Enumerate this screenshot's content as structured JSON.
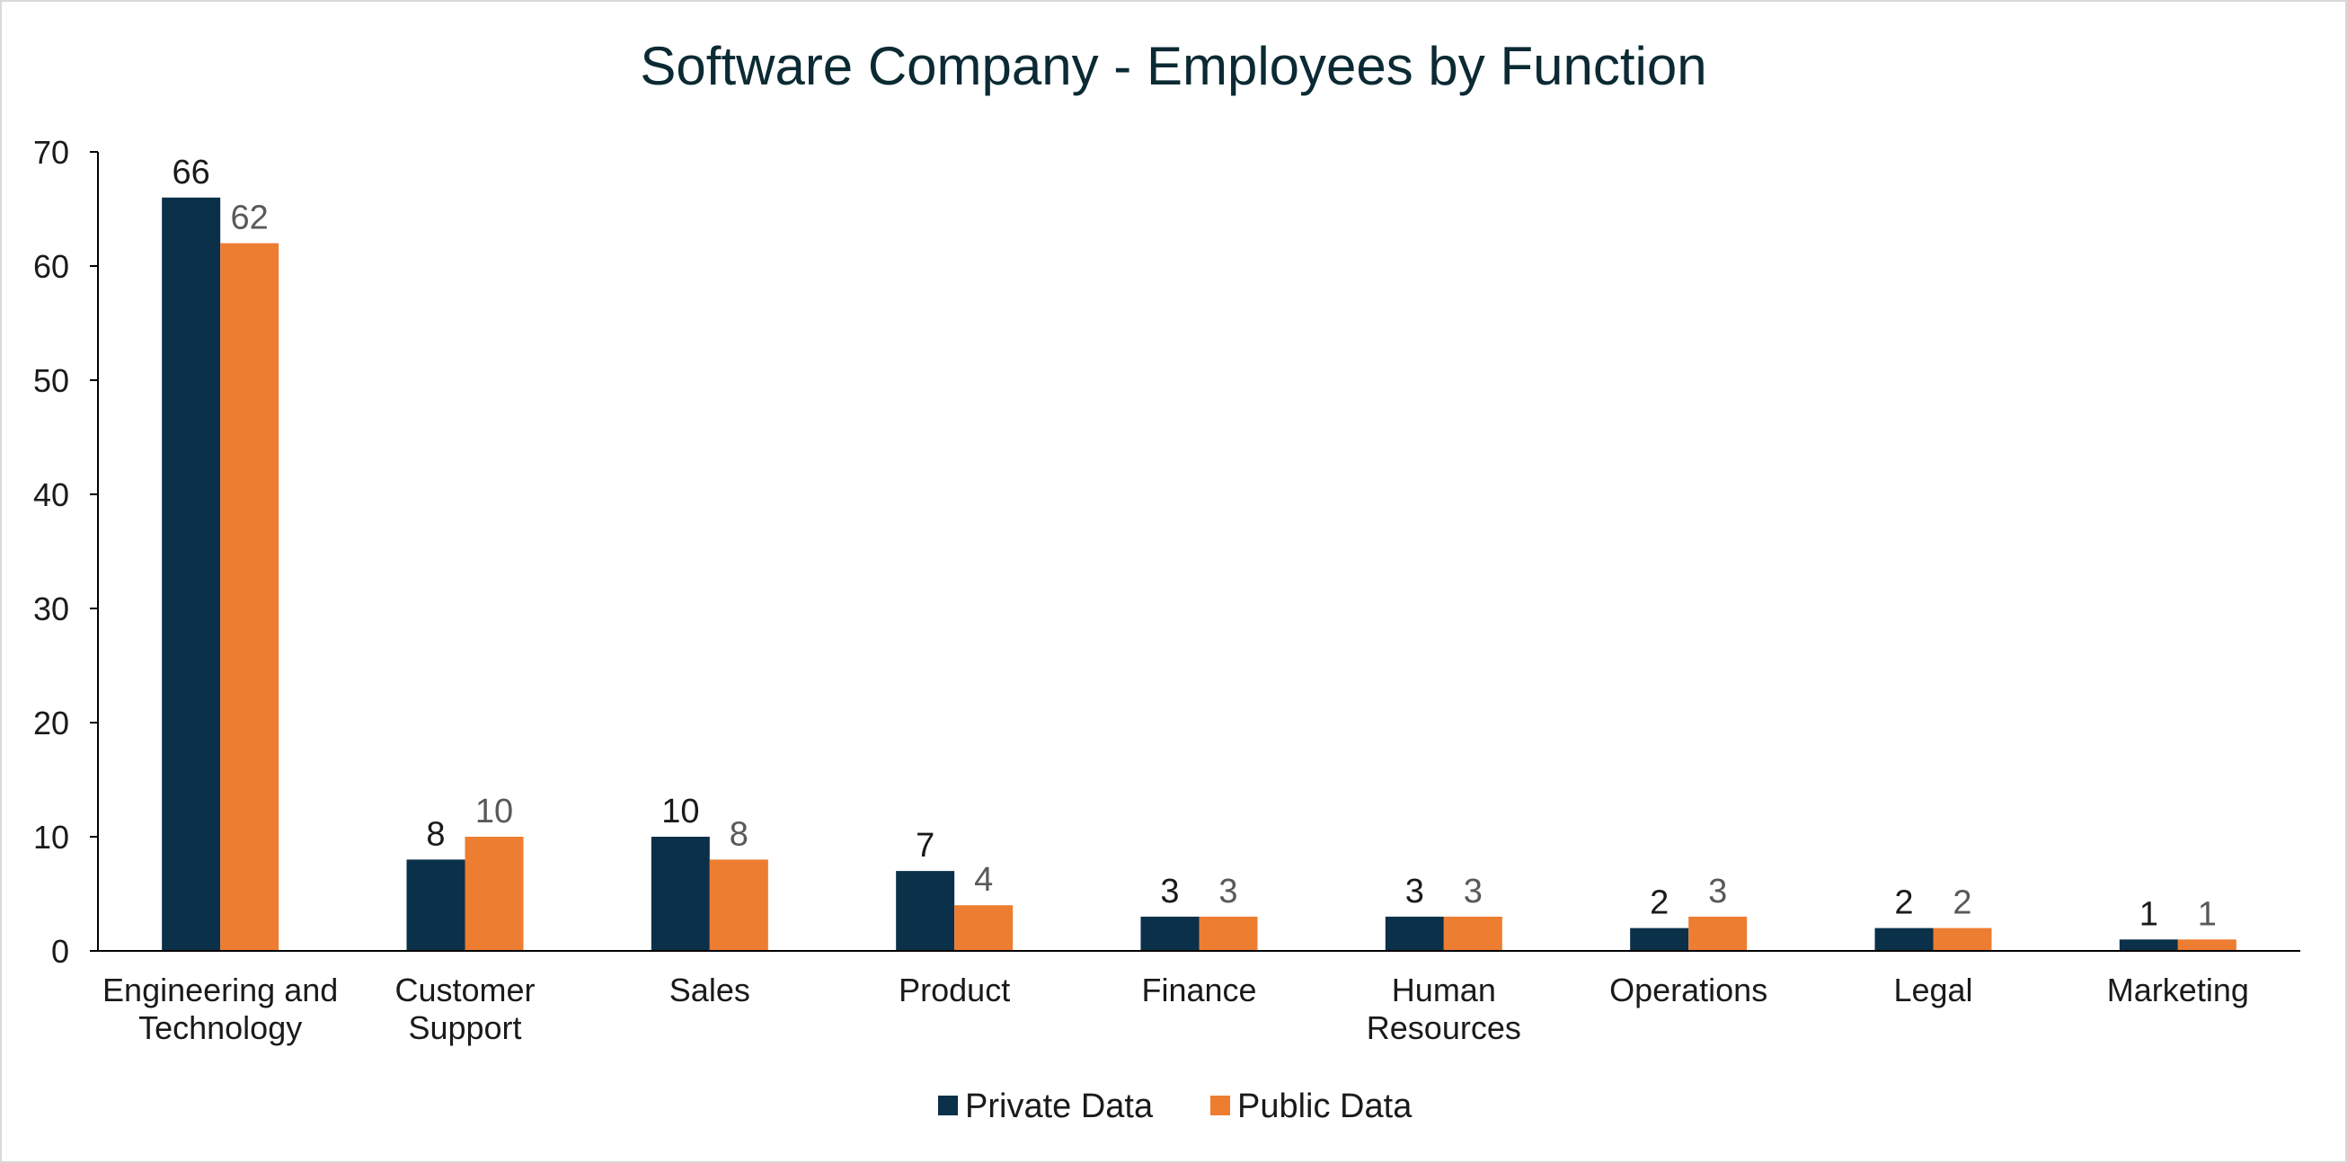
{
  "chart_data": {
    "type": "bar",
    "title": "Software Company - Employees by Function",
    "xlabel": "",
    "ylabel": "",
    "ylim": [
      0,
      70
    ],
    "yticks": [
      0,
      10,
      20,
      30,
      40,
      50,
      60,
      70
    ],
    "categories": [
      [
        "Engineering and",
        "Technology"
      ],
      [
        "Customer",
        "Support"
      ],
      [
        "Sales"
      ],
      [
        "Product"
      ],
      [
        "Finance"
      ],
      [
        "Human",
        "Resources"
      ],
      [
        "Operations"
      ],
      [
        "Legal"
      ],
      [
        "Marketing"
      ]
    ],
    "series": [
      {
        "name": "Private Data",
        "color": "#0b3049",
        "values": [
          66,
          8,
          10,
          7,
          3,
          3,
          2,
          2,
          1
        ]
      },
      {
        "name": "Public Data",
        "color": "#ed7d31",
        "values": [
          62,
          10,
          8,
          4,
          3,
          3,
          3,
          2,
          1
        ]
      }
    ],
    "legend_position": "bottom-center",
    "grid": false
  }
}
